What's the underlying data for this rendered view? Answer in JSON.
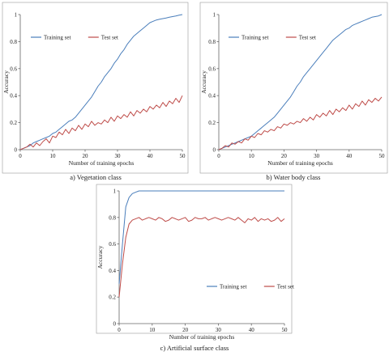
{
  "chart_data": [
    {
      "type": "line",
      "caption": "a) Vegetation class",
      "xlabel": "Number of training epochs",
      "ylabel": "Accuracy",
      "xlim": [
        0,
        50
      ],
      "ylim": [
        0,
        1
      ],
      "xticks": [
        0,
        10,
        20,
        30,
        40,
        50
      ],
      "yticks": [
        0,
        0.2,
        0.4,
        0.6,
        0.8,
        1
      ],
      "ytick_labels": [
        "0",
        "0.2",
        "0.4",
        "0.6",
        "0.8",
        "1"
      ],
      "legend_position": "top-left",
      "x": [
        0,
        1,
        2,
        3,
        4,
        5,
        6,
        7,
        8,
        9,
        10,
        11,
        12,
        13,
        14,
        15,
        16,
        17,
        18,
        19,
        20,
        21,
        22,
        23,
        24,
        25,
        26,
        27,
        28,
        29,
        30,
        31,
        32,
        33,
        34,
        35,
        36,
        37,
        38,
        39,
        40,
        41,
        42,
        43,
        44,
        45,
        46,
        47,
        48,
        49,
        50
      ],
      "series": [
        {
          "name": "Training set",
          "color": "#4a7ebb",
          "values": [
            0.0,
            0.01,
            0.02,
            0.03,
            0.05,
            0.06,
            0.07,
            0.08,
            0.09,
            0.1,
            0.12,
            0.13,
            0.15,
            0.17,
            0.19,
            0.21,
            0.22,
            0.24,
            0.27,
            0.3,
            0.33,
            0.36,
            0.39,
            0.43,
            0.47,
            0.5,
            0.54,
            0.57,
            0.6,
            0.64,
            0.67,
            0.71,
            0.74,
            0.78,
            0.81,
            0.84,
            0.86,
            0.88,
            0.9,
            0.92,
            0.94,
            0.95,
            0.96,
            0.965,
            0.97,
            0.975,
            0.98,
            0.985,
            0.99,
            0.995,
            1.0
          ]
        },
        {
          "name": "Test set",
          "color": "#be4b48",
          "values": [
            0.0,
            0.01,
            0.02,
            0.04,
            0.02,
            0.05,
            0.03,
            0.06,
            0.08,
            0.05,
            0.1,
            0.09,
            0.13,
            0.11,
            0.15,
            0.12,
            0.16,
            0.14,
            0.18,
            0.15,
            0.19,
            0.17,
            0.21,
            0.18,
            0.2,
            0.19,
            0.22,
            0.2,
            0.24,
            0.21,
            0.25,
            0.23,
            0.26,
            0.24,
            0.28,
            0.25,
            0.29,
            0.27,
            0.3,
            0.28,
            0.32,
            0.3,
            0.33,
            0.31,
            0.35,
            0.32,
            0.36,
            0.34,
            0.38,
            0.35,
            0.4
          ]
        }
      ]
    },
    {
      "type": "line",
      "caption": "b) Water body class",
      "xlabel": "Number of training epochs",
      "ylabel": "Accuracy",
      "xlim": [
        0,
        50
      ],
      "ylim": [
        0,
        1
      ],
      "xticks": [
        0,
        10,
        20,
        30,
        40,
        50
      ],
      "yticks": [
        0,
        0.2,
        0.4,
        0.6,
        0.8,
        1
      ],
      "ytick_labels": [
        "0",
        "0.2",
        "0.4",
        "0.6",
        "0.8",
        "1"
      ],
      "legend_position": "top-left",
      "x": [
        0,
        1,
        2,
        3,
        4,
        5,
        6,
        7,
        8,
        9,
        10,
        11,
        12,
        13,
        14,
        15,
        16,
        17,
        18,
        19,
        20,
        21,
        22,
        23,
        24,
        25,
        26,
        27,
        28,
        29,
        30,
        31,
        32,
        33,
        34,
        35,
        36,
        37,
        38,
        39,
        40,
        41,
        42,
        43,
        44,
        45,
        46,
        47,
        48,
        49,
        50
      ],
      "series": [
        {
          "name": "Training set",
          "color": "#4a7ebb",
          "values": [
            0.0,
            0.01,
            0.02,
            0.03,
            0.04,
            0.05,
            0.06,
            0.07,
            0.08,
            0.09,
            0.1,
            0.12,
            0.14,
            0.16,
            0.18,
            0.2,
            0.22,
            0.24,
            0.27,
            0.3,
            0.33,
            0.36,
            0.39,
            0.43,
            0.47,
            0.5,
            0.54,
            0.57,
            0.6,
            0.63,
            0.66,
            0.69,
            0.72,
            0.75,
            0.78,
            0.81,
            0.83,
            0.85,
            0.87,
            0.89,
            0.9,
            0.92,
            0.93,
            0.94,
            0.95,
            0.96,
            0.97,
            0.98,
            0.985,
            0.99,
            1.0
          ]
        },
        {
          "name": "Test set",
          "color": "#be4b48",
          "values": [
            0.0,
            0.01,
            0.03,
            0.02,
            0.05,
            0.04,
            0.06,
            0.05,
            0.08,
            0.07,
            0.1,
            0.09,
            0.12,
            0.11,
            0.14,
            0.13,
            0.15,
            0.14,
            0.17,
            0.16,
            0.19,
            0.18,
            0.2,
            0.19,
            0.21,
            0.2,
            0.23,
            0.21,
            0.24,
            0.22,
            0.26,
            0.24,
            0.27,
            0.25,
            0.29,
            0.26,
            0.3,
            0.28,
            0.31,
            0.29,
            0.33,
            0.3,
            0.34,
            0.32,
            0.36,
            0.33,
            0.37,
            0.35,
            0.38,
            0.36,
            0.39
          ]
        }
      ]
    },
    {
      "type": "line",
      "caption": "c) Artificial surface class",
      "xlabel": "Number of training epochs",
      "ylabel": "Accuracy",
      "xlim": [
        0,
        50
      ],
      "ylim": [
        0,
        1
      ],
      "xticks": [
        0,
        10,
        20,
        30,
        40,
        50
      ],
      "yticks": [
        0,
        0.2,
        0.4,
        0.6,
        0.8,
        1
      ],
      "ytick_labels": [
        "0",
        "0.2",
        "0.4",
        "0.6",
        "0.8",
        "1"
      ],
      "legend_position": "bottom-right",
      "x": [
        0,
        1,
        2,
        3,
        4,
        5,
        6,
        7,
        8,
        9,
        10,
        11,
        12,
        13,
        14,
        15,
        16,
        17,
        18,
        19,
        20,
        21,
        22,
        23,
        24,
        25,
        26,
        27,
        28,
        29,
        30,
        31,
        32,
        33,
        34,
        35,
        36,
        37,
        38,
        39,
        40,
        41,
        42,
        43,
        44,
        45,
        46,
        47,
        48,
        49,
        50
      ],
      "series": [
        {
          "name": "Training set",
          "color": "#4a7ebb",
          "values": [
            0.3,
            0.6,
            0.88,
            0.95,
            0.98,
            0.99,
            1.0,
            1.0,
            1.0,
            1.0,
            1.0,
            1.0,
            1.0,
            1.0,
            1.0,
            1.0,
            1.0,
            1.0,
            1.0,
            1.0,
            1.0,
            1.0,
            1.0,
            1.0,
            1.0,
            1.0,
            1.0,
            1.0,
            1.0,
            1.0,
            1.0,
            1.0,
            1.0,
            1.0,
            1.0,
            1.0,
            1.0,
            1.0,
            1.0,
            1.0,
            1.0,
            1.0,
            1.0,
            1.0,
            1.0,
            1.0,
            1.0,
            1.0,
            1.0,
            1.0,
            1.0
          ]
        },
        {
          "name": "Test set",
          "color": "#be4b48",
          "values": [
            0.2,
            0.45,
            0.65,
            0.75,
            0.78,
            0.79,
            0.8,
            0.78,
            0.79,
            0.8,
            0.79,
            0.78,
            0.8,
            0.79,
            0.77,
            0.78,
            0.8,
            0.79,
            0.78,
            0.79,
            0.8,
            0.77,
            0.78,
            0.8,
            0.79,
            0.79,
            0.8,
            0.78,
            0.79,
            0.8,
            0.79,
            0.78,
            0.79,
            0.8,
            0.79,
            0.78,
            0.8,
            0.78,
            0.76,
            0.79,
            0.78,
            0.8,
            0.77,
            0.79,
            0.78,
            0.79,
            0.77,
            0.78,
            0.8,
            0.77,
            0.79
          ]
        }
      ]
    }
  ]
}
